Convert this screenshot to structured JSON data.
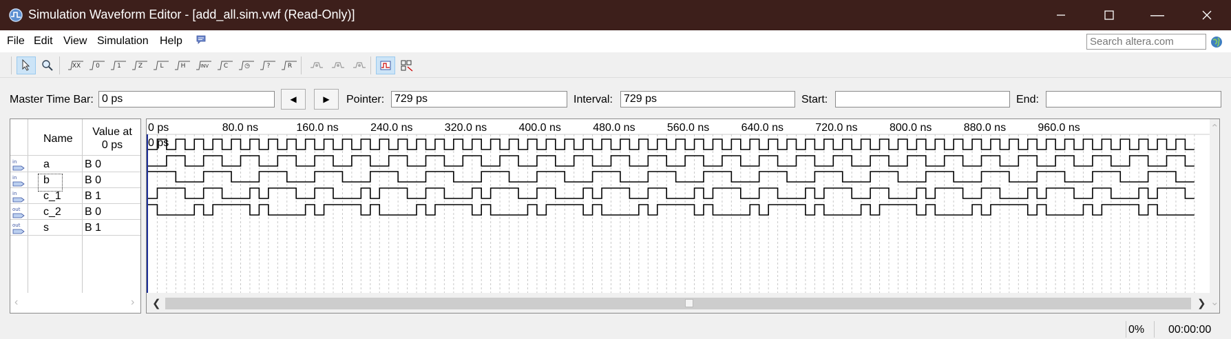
{
  "window": {
    "title": "Simulation Waveform Editor - [add_all.sim.vwf (Read-Only)]",
    "controls": [
      "minimize",
      "maximize",
      "close"
    ]
  },
  "menu": {
    "items": [
      "File",
      "Edit",
      "View",
      "Simulation",
      "Help"
    ],
    "help_icon": "chat-bubble-icon",
    "search_placeholder": "Search altera.com"
  },
  "toolbar": {
    "tools": [
      {
        "name": "selection-tool-icon",
        "active": true
      },
      {
        "name": "zoom-tool-icon",
        "active": false
      },
      {
        "name": "uninitialized-icon",
        "text": "XX"
      },
      {
        "name": "force-low-icon",
        "text": "0"
      },
      {
        "name": "force-high-icon",
        "text": "1"
      },
      {
        "name": "high-impedance-icon",
        "text": "Z"
      },
      {
        "name": "weak-low-icon",
        "text": "L"
      },
      {
        "name": "weak-high-icon",
        "text": "H"
      },
      {
        "name": "invert-icon",
        "text": "INV"
      },
      {
        "name": "count-value-icon",
        "text": "C"
      },
      {
        "name": "clock-icon",
        "text": "◷"
      },
      {
        "name": "arbitrary-value-icon",
        "text": "?"
      },
      {
        "name": "random-value-icon",
        "text": "R"
      },
      {
        "name": "snap-to-grid-icon"
      },
      {
        "name": "sort-icon"
      },
      {
        "name": "reverse-icon"
      },
      {
        "name": "overwrite-clock-icon",
        "active": true
      },
      {
        "name": "grid-settings-icon"
      }
    ]
  },
  "timebar": {
    "master_label": "Master Time Bar:",
    "master_value": "0 ps",
    "pointer_label": "Pointer:",
    "pointer_value": "729 ps",
    "interval_label": "Interval:",
    "interval_value": "729 ps",
    "start_label": "Start:",
    "start_value": "",
    "end_label": "End:",
    "end_value": ""
  },
  "columns": {
    "name": "Name",
    "value_line1": "Value at",
    "value_line2": "0 ps"
  },
  "signals": [
    {
      "dir": "in",
      "name": "a",
      "value": "B 0"
    },
    {
      "dir": "in",
      "name": "b",
      "value": "B 0"
    },
    {
      "dir": "in",
      "name": "c_1",
      "value": "B 1"
    },
    {
      "dir": "out",
      "name": "c_2",
      "value": "B 0"
    },
    {
      "dir": "out",
      "name": "s",
      "value": "B 1"
    }
  ],
  "timeline": {
    "ticks": [
      "0 ps",
      "80.0 ns",
      "160.0 ns",
      "240.0 ns",
      "320.0 ns",
      "400.0 ns",
      "480.0 ns",
      "560.0 ns",
      "640.0 ns",
      "720.0 ns",
      "800.0 ns",
      "880.0 ns",
      "960.0 ns"
    ],
    "cursor_label": "0 ps"
  },
  "status": {
    "progress": "0%",
    "elapsed": "00:00:00"
  }
}
